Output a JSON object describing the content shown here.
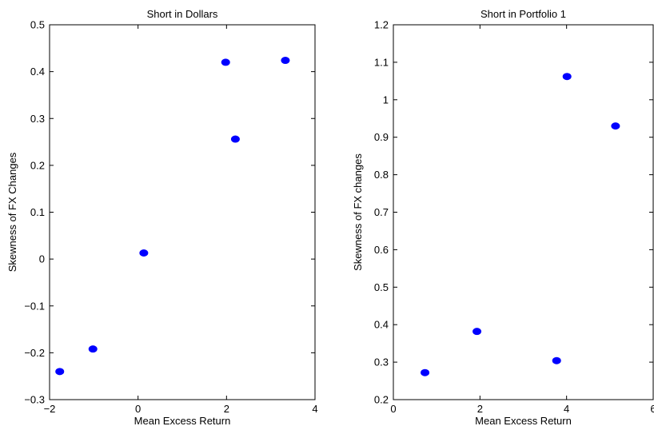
{
  "chart_data": [
    {
      "type": "scatter",
      "title": "Short in Dollars",
      "xlabel": "Mean Excess Return",
      "ylabel": "Skewness of FX Changes",
      "xlim": [
        -2,
        4
      ],
      "ylim": [
        -0.3,
        0.5
      ],
      "xticks": [
        -2,
        0,
        2,
        4
      ],
      "yticks": [
        -0.3,
        -0.2,
        -0.1,
        0,
        0.1,
        0.2,
        0.3,
        0.4,
        0.5
      ],
      "xtick_labels": [
        "−2",
        "0",
        "2",
        "4"
      ],
      "ytick_labels": [
        "−0.3",
        "−0.2",
        "−0.1",
        "0",
        "0.1",
        "0.2",
        "0.3",
        "0.4",
        "0.5"
      ],
      "grid": false,
      "marker_color": "#0000ff",
      "points": [
        {
          "x": -1.77,
          "y": -0.24
        },
        {
          "x": -1.02,
          "y": -0.192
        },
        {
          "x": 0.13,
          "y": 0.013
        },
        {
          "x": 1.98,
          "y": 0.42
        },
        {
          "x": 2.2,
          "y": 0.256
        },
        {
          "x": 3.33,
          "y": 0.424
        }
      ]
    },
    {
      "type": "scatter",
      "title": "Short in Portfolio 1",
      "xlabel": "Mean Excess Return",
      "ylabel": "Skewness of FX changes",
      "xlim": [
        0,
        6
      ],
      "ylim": [
        0.2,
        1.2
      ],
      "xticks": [
        0,
        2,
        4,
        6
      ],
      "yticks": [
        0.2,
        0.3,
        0.4,
        0.5,
        0.6,
        0.7,
        0.8,
        0.9,
        1.0,
        1.1,
        1.2
      ],
      "xtick_labels": [
        "0",
        "2",
        "4",
        "6"
      ],
      "ytick_labels": [
        "0.2",
        "0.3",
        "0.4",
        "0.5",
        "0.6",
        "0.7",
        "0.8",
        "0.9",
        "1",
        "1.1",
        "1.2"
      ],
      "grid": false,
      "marker_color": "#0000ff",
      "points": [
        {
          "x": 0.73,
          "y": 0.272
        },
        {
          "x": 1.93,
          "y": 0.382
        },
        {
          "x": 3.77,
          "y": 0.304
        },
        {
          "x": 4.01,
          "y": 1.062
        },
        {
          "x": 5.13,
          "y": 0.93
        }
      ]
    }
  ]
}
